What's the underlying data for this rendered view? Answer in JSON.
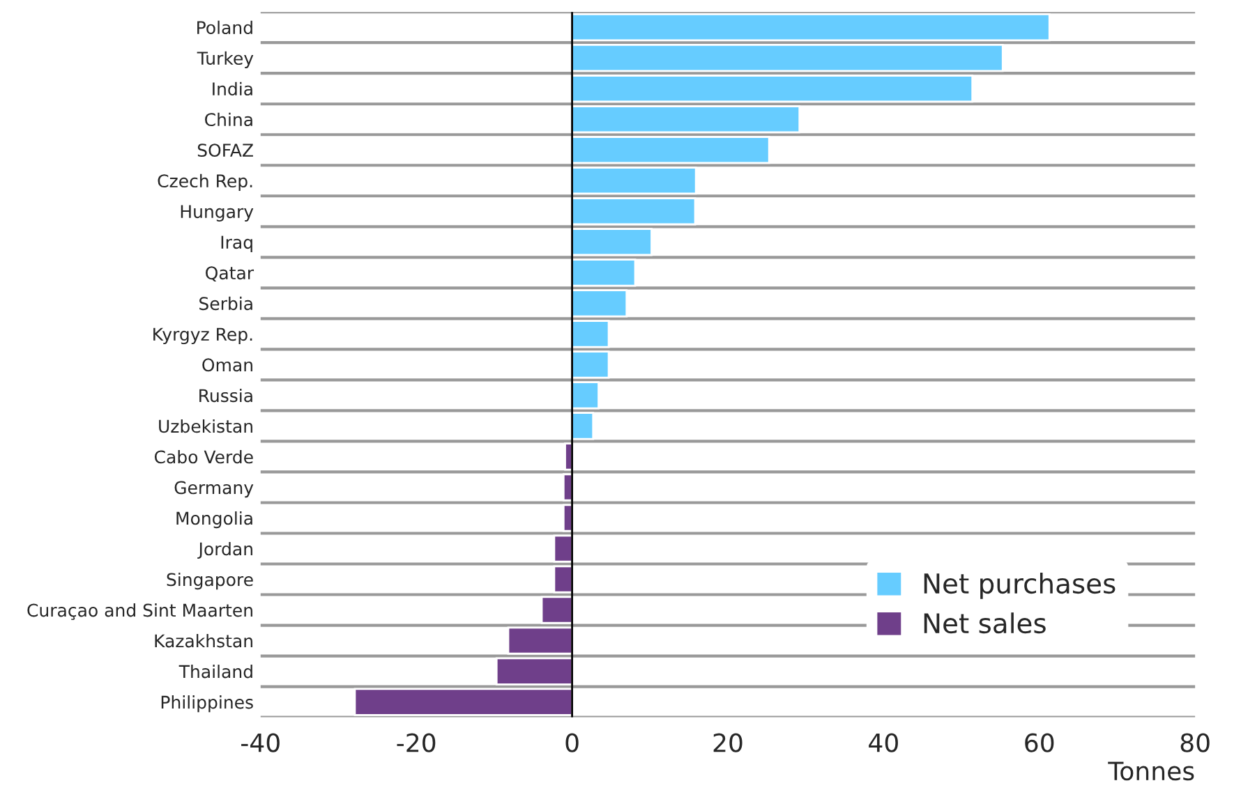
{
  "chart_data": {
    "type": "bar",
    "orientation": "horizontal",
    "xlabel": "Tonnes",
    "categories": [
      "Poland",
      "Turkey",
      "India",
      "China",
      "SOFAZ",
      "Czech Rep.",
      "Hungary",
      "Iraq",
      "Qatar",
      "Serbia",
      "Kyrgyz Rep.",
      "Oman",
      "Russia",
      "Uzbekistan",
      "Cabo Verde",
      "Germany",
      "Mongolia",
      "Jordan",
      "Singapore",
      "Curaçao and Sint Maarten",
      "Kazakhstan",
      "Thailand",
      "Philippines"
    ],
    "series": [
      {
        "name": "Net purchases",
        "color": "#66ccff",
        "values": [
          61.3,
          55.3,
          51.4,
          29.2,
          25.3,
          15.9,
          15.8,
          10.2,
          8.1,
          7.0,
          4.7,
          4.7,
          3.4,
          2.7,
          null,
          null,
          null,
          null,
          null,
          null,
          null,
          null,
          null
        ]
      },
      {
        "name": "Net sales",
        "color": "#6f3f8a",
        "values": [
          null,
          null,
          null,
          null,
          null,
          null,
          null,
          null,
          null,
          null,
          null,
          null,
          null,
          null,
          -0.9,
          -1.1,
          -1.1,
          -2.3,
          -2.3,
          -3.9,
          -8.2,
          -9.7,
          -27.9
        ]
      }
    ],
    "xlim": [
      -40,
      80
    ],
    "xticks": [
      -40,
      -20,
      0,
      20,
      40,
      60,
      80
    ],
    "grid": "y",
    "legend": "bottom right"
  }
}
